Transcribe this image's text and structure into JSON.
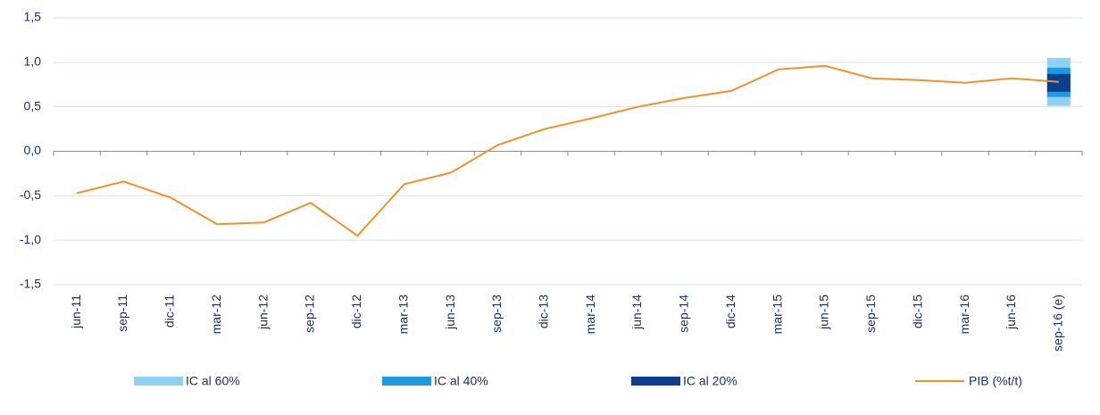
{
  "chart_data": {
    "type": "line",
    "categories": [
      "jun-11",
      "sep-11",
      "dic-11",
      "mar-12",
      "jun-12",
      "sep-12",
      "dic-12",
      "mar-13",
      "jun-13",
      "sep-13",
      "dic-13",
      "mar-14",
      "jun-14",
      "sep-14",
      "dic-14",
      "mar-15",
      "jun-15",
      "sep-15",
      "dic-15",
      "mar-16",
      "jun-16",
      "sep-16 (e)"
    ],
    "series": [
      {
        "name": "PIB (%t/t)",
        "color": "#f0912a",
        "values": [
          -0.47,
          -0.34,
          -0.52,
          -0.82,
          -0.8,
          -0.58,
          -0.95,
          -0.37,
          -0.24,
          0.07,
          0.25,
          0.37,
          0.5,
          0.6,
          0.68,
          0.92,
          0.96,
          0.82,
          0.8,
          0.77,
          0.82,
          0.78
        ]
      }
    ],
    "intervals": [
      {
        "name": "IC al 60%",
        "color": "#8fd1f5",
        "low": 0.51,
        "high": 1.05
      },
      {
        "name": "IC al 40%",
        "color": "#1e9be0",
        "low": 0.61,
        "high": 0.94
      },
      {
        "name": "IC al 20%",
        "color": "#0b3d91",
        "low": 0.67,
        "high": 0.87
      }
    ],
    "ylim": [
      -1.5,
      1.5
    ],
    "yticks": [
      {
        "value": -1.5,
        "label": "-1,5"
      },
      {
        "value": -1.0,
        "label": "-1,0"
      },
      {
        "value": -0.5,
        "label": "-0,5"
      },
      {
        "value": 0,
        "label": "0,0"
      },
      {
        "value": 0.5,
        "label": "0,5"
      },
      {
        "value": 1.0,
        "label": "1,0"
      },
      {
        "value": 1.5,
        "label": "1,5"
      }
    ],
    "grid": true
  }
}
